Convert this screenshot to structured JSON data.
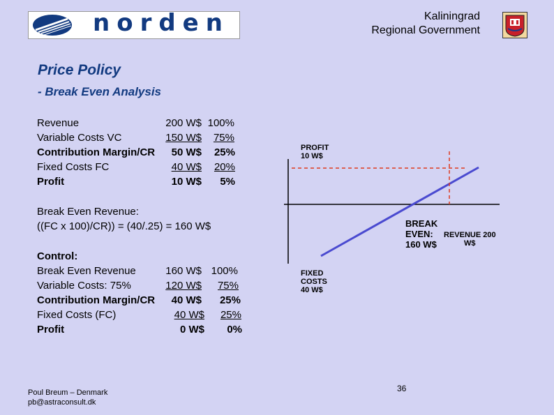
{
  "header": {
    "brand": "norden",
    "gov_line1": "Kaliningrad",
    "gov_line2": "Regional Government"
  },
  "title": "Price Policy",
  "subtitle": "- Break Even Analysis",
  "table1": [
    {
      "label": "Revenue",
      "amount": "200 W$",
      "percent": "100%",
      "bold": false,
      "underline": false
    },
    {
      "label": "Variable Costs VC",
      "amount": "150 W$",
      "percent": "75%",
      "bold": false,
      "underline": true
    },
    {
      "label": "Contribution Margin/CR",
      "amount": "50 W$",
      "percent": "25%",
      "bold": true,
      "underline": false
    },
    {
      "label": "Fixed Costs FC",
      "amount": "40 W$",
      "percent": "20%",
      "bold": false,
      "underline": true
    },
    {
      "label": "Profit",
      "amount": "10 W$",
      "percent": "5%",
      "bold": true,
      "underline": false
    }
  ],
  "break_even": {
    "line1": "Break Even Revenue:",
    "line2": "((FC x 100)/CR)) = (40/.25) = 160 W$"
  },
  "control": {
    "heading": "Control:",
    "rows": [
      {
        "label": "Break Even Revenue",
        "amount": "160 W$",
        "percent": "100%",
        "bold": false,
        "underline": false
      },
      {
        "label": "Variable Costs: 75%",
        "amount": "120 W$",
        "percent": "75%",
        "bold": false,
        "underline": true
      },
      {
        "label": "Contribution Margin/CR",
        "amount": "40 W$",
        "percent": "25%",
        "bold": true,
        "underline": false
      },
      {
        "label": "Fixed Costs (FC)",
        "amount": "40 W$",
        "percent": "25%",
        "bold": false,
        "underline": true
      },
      {
        "label": "Profit",
        "amount": "0 W$",
        "percent": "0%",
        "bold": true,
        "underline": false
      }
    ]
  },
  "chart": {
    "profit_l1": "PROFIT",
    "profit_l2": "10 W$",
    "break_l1": "BREAK",
    "break_l2": "EVEN:",
    "break_l3": "160 W$",
    "revenue_l1": "REVENUE 200",
    "revenue_l2": "W$",
    "fixed_l1": "FIXED",
    "fixed_l2": "COSTS",
    "fixed_l3": "40 W$",
    "line_color": "#4a4ad0",
    "dash_color": "#e03a1e"
  },
  "footer": {
    "author": "Poul Breum – Denmark",
    "email": "pb@astraconsult.dk",
    "page_number": "36"
  }
}
